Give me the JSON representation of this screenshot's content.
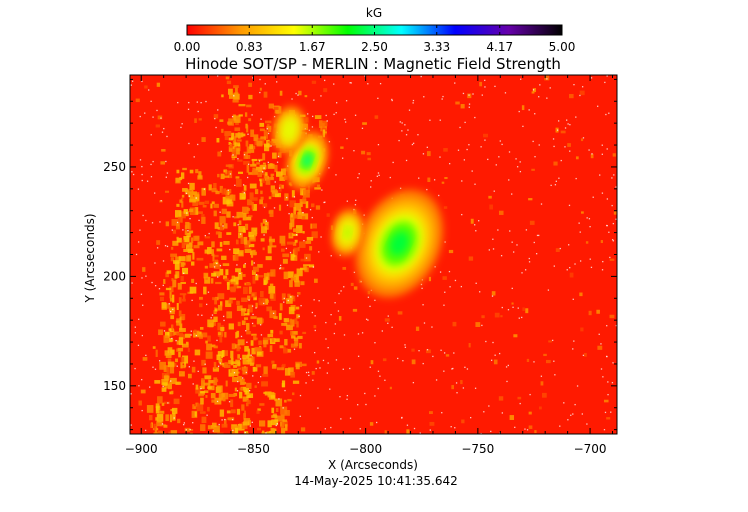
{
  "chart_data": {
    "type": "heatmap",
    "title": "Hinode SOT/SP - MERLIN : Magnetic Field Strength",
    "xlabel": "X (Arcseconds)",
    "ylabel": "Y (Arcseconds)",
    "xlim": [
      -905,
      -688
    ],
    "ylim": [
      128,
      292
    ],
    "xticks": [
      -900,
      -850,
      -800,
      -750,
      -700
    ],
    "xtick_labels": [
      "−900",
      "−850",
      "−800",
      "−750",
      "−700"
    ],
    "yticks": [
      150,
      200,
      250
    ],
    "ytick_labels": [
      "150",
      "200",
      "250"
    ],
    "colorbar": {
      "label": "kG",
      "range": [
        0.0,
        5.0
      ],
      "ticks": [
        0.0,
        0.83,
        1.67,
        2.5,
        3.33,
        4.17,
        5.0
      ],
      "tick_labels": [
        "0.00",
        "0.83",
        "1.67",
        "2.50",
        "3.33",
        "4.17",
        "5.00"
      ],
      "colors": [
        "#ff0000",
        "#ff9900",
        "#ffff00",
        "#00ff00",
        "#00ffff",
        "#0000ff",
        "#6600aa",
        "#000000"
      ]
    },
    "features": [
      {
        "kind": "sunspot-umbra",
        "x": -785,
        "y": 215,
        "peak_kG": 2.3
      },
      {
        "kind": "pore",
        "x": -826,
        "y": 253,
        "peak_kG": 2.5
      },
      {
        "kind": "plage",
        "x": -808,
        "y": 220,
        "peak_kG": 1.7
      },
      {
        "kind": "plage",
        "x": -834,
        "y": 267,
        "peak_kG": 1.5
      }
    ],
    "background_kG": 0.0,
    "grid": false
  },
  "footer": {
    "timestamp": "14-May-2025 10:41:35.642"
  }
}
